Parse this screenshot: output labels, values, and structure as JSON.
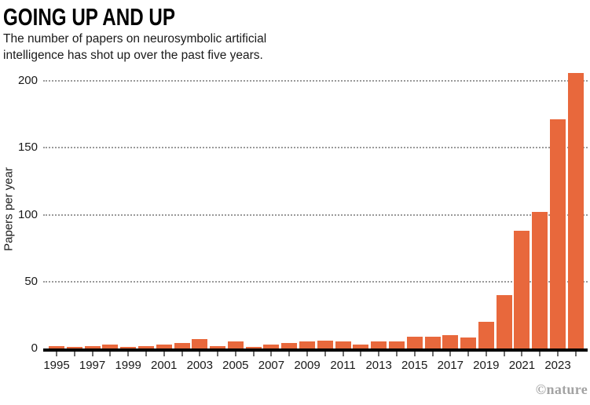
{
  "header": {
    "title": "GOING UP AND UP",
    "subtitle": "The number of papers on neurosymbolic artificial intelligence has shot up over the past five years."
  },
  "footer": {
    "credit": "©nature"
  },
  "colors": {
    "bar": "#E8683C",
    "axis": "#000000",
    "gridline": "#9a9a9a",
    "text": "#1a1a1a",
    "credit": "#a3a3a3"
  },
  "chart_data": {
    "type": "bar",
    "title": "GOING UP AND UP",
    "subtitle": "The number of papers on neurosymbolic artificial intelligence has shot up over the past five years.",
    "xlabel": "",
    "ylabel": "Papers per year",
    "ylim": [
      0,
      210
    ],
    "yticks": [
      0,
      50,
      100,
      150,
      200
    ],
    "grid": "horizontal-dotted",
    "legend": "none",
    "categories": [
      1995,
      1996,
      1997,
      1998,
      1999,
      2000,
      2001,
      2002,
      2003,
      2004,
      2005,
      2006,
      2007,
      2008,
      2009,
      2010,
      2011,
      2012,
      2013,
      2014,
      2015,
      2016,
      2017,
      2018,
      2019,
      2020,
      2021,
      2022,
      2023,
      2024
    ],
    "values": [
      2,
      1,
      2,
      3,
      1,
      2,
      3,
      4,
      7,
      2,
      5,
      1,
      3,
      4,
      5,
      6,
      5,
      3,
      5,
      5,
      9,
      9,
      10,
      8,
      20,
      40,
      88,
      102,
      171,
      206
    ],
    "xtick_labels": [
      "1995",
      "1997",
      "1999",
      "2001",
      "2003",
      "2005",
      "2007",
      "2009",
      "2011",
      "2013",
      "2015",
      "2017",
      "2019",
      "2021",
      "2023"
    ]
  }
}
